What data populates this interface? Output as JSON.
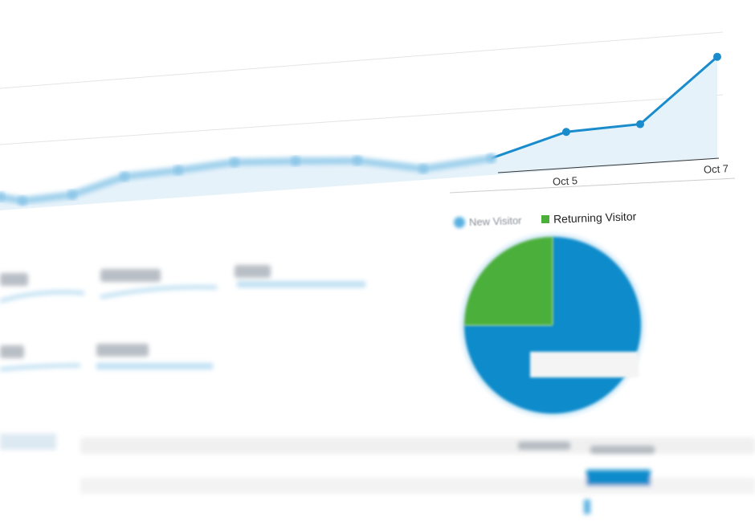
{
  "chart_data": [
    {
      "type": "line",
      "x_tick_labels": [
        "Oct 5",
        "Oct 7"
      ],
      "values": [
        17,
        10,
        13,
        31,
        34,
        39,
        35,
        30,
        14,
        21,
        47,
        50,
        127
      ],
      "area_fill": true,
      "grid": true,
      "colors": {
        "line": "#1a8ccc",
        "area": "#e6f2fa"
      }
    },
    {
      "type": "pie",
      "legend": [
        "",
        "Returning Visitor"
      ],
      "slices": [
        {
          "label": "New Visitor",
          "value": 75,
          "color": "#0b8bcb"
        },
        {
          "label": "Returning Visitor",
          "value": 25,
          "color": "#4caf3a"
        }
      ],
      "legend_placement": "top"
    }
  ]
}
